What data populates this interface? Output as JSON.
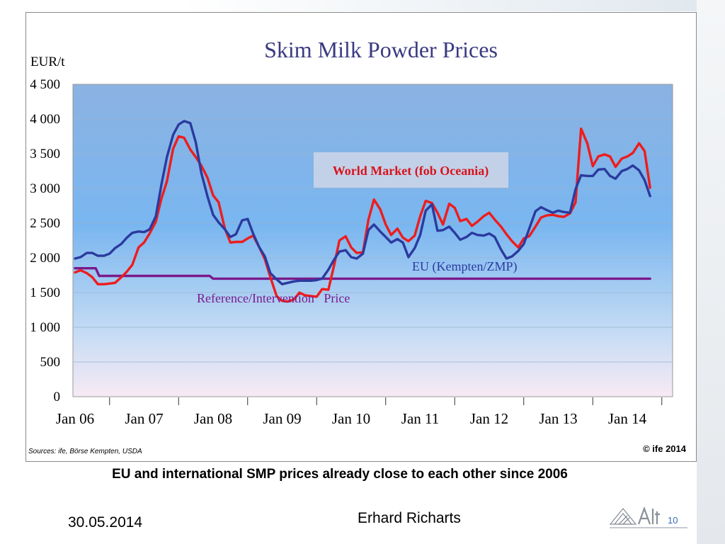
{
  "slide": {
    "caption": "EU and international SMP prices already close to each other since 2006",
    "date": "30.05.2014",
    "author": "Erhard Richarts",
    "page_number": "10"
  },
  "chart_data": {
    "type": "line",
    "title": "Skim Milk Powder Prices",
    "ylabel": "EUR/t",
    "xlabel": "",
    "ylim": [
      0,
      4500
    ],
    "yticks": [
      0,
      500,
      1000,
      1500,
      2000,
      2500,
      3000,
      3500,
      4000,
      4500
    ],
    "ytick_labels": [
      "0",
      "500",
      "1 000",
      "1 500",
      "2 000",
      "2 500",
      "3 000",
      "3 500",
      "4 000",
      "4 500"
    ],
    "xticks": [
      "Jan 06",
      "Jan 07",
      "Jan 08",
      "Jan 09",
      "Jan 10",
      "Jan 11",
      "Jan 12",
      "Jan 13",
      "Jan 14"
    ],
    "grid": true,
    "annotations": {
      "world": "World Market (fob Oceania)",
      "eu": "EU (Kempten/ZMP)",
      "ref": "Reference/Intervention   Price"
    },
    "source": "Sources: ife, Börse Kempten,  USDA",
    "copyright": "© ife 2014",
    "colors": {
      "world": "#ee1c1c",
      "eu": "#2b3a9e",
      "ref": "#7a1a8c"
    },
    "series": [
      {
        "key": "world",
        "color": "#ee1c1c",
        "t": [
          2006.0,
          2006.08,
          2006.17,
          2006.25,
          2006.33,
          2006.42,
          2006.5,
          2006.58,
          2006.67,
          2006.75,
          2006.83,
          2006.92,
          2007.0,
          2007.08,
          2007.17,
          2007.25,
          2007.33,
          2007.42,
          2007.5,
          2007.58,
          2007.67,
          2007.75,
          2007.83,
          2007.92,
          2008.0,
          2008.08,
          2008.17,
          2008.25,
          2008.33,
          2008.42,
          2008.5,
          2008.58,
          2008.67,
          2008.75,
          2008.83,
          2008.92,
          2009.0,
          2009.08,
          2009.17,
          2009.25,
          2009.33,
          2009.42,
          2009.5,
          2009.58,
          2009.67,
          2009.75,
          2009.83,
          2009.92,
          2010.0,
          2010.08,
          2010.17,
          2010.25,
          2010.33,
          2010.42,
          2010.5,
          2010.58,
          2010.67,
          2010.75,
          2010.83,
          2010.92,
          2011.0,
          2011.08,
          2011.17,
          2011.25,
          2011.33,
          2011.42,
          2011.5,
          2011.58,
          2011.67,
          2011.75,
          2011.83,
          2011.92,
          2012.0,
          2012.08,
          2012.17,
          2012.25,
          2012.33,
          2012.42,
          2012.5,
          2012.58,
          2012.67,
          2012.75,
          2012.83,
          2012.92,
          2013.0,
          2013.08,
          2013.17,
          2013.25,
          2013.33,
          2013.42,
          2013.5,
          2013.58,
          2013.67,
          2013.75,
          2013.83,
          2013.92,
          2014.0,
          2014.08,
          2014.17,
          2014.25,
          2014.33
        ],
        "values": [
          1790,
          1820,
          1780,
          1720,
          1620,
          1620,
          1630,
          1640,
          1720,
          1800,
          1900,
          2150,
          2220,
          2350,
          2520,
          2850,
          3100,
          3570,
          3750,
          3730,
          3560,
          3450,
          3330,
          3150,
          2900,
          2800,
          2420,
          2220,
          2230,
          2230,
          2280,
          2320,
          2150,
          1980,
          1720,
          1450,
          1380,
          1370,
          1400,
          1500,
          1460,
          1450,
          1440,
          1550,
          1540,
          1880,
          2250,
          2310,
          2150,
          2070,
          2080,
          2550,
          2840,
          2700,
          2480,
          2330,
          2420,
          2290,
          2240,
          2320,
          2600,
          2820,
          2790,
          2650,
          2480,
          2780,
          2720,
          2530,
          2560,
          2460,
          2520,
          2600,
          2650,
          2550,
          2450,
          2340,
          2240,
          2150,
          2280,
          2310,
          2450,
          2580,
          2610,
          2620,
          2600,
          2590,
          2640,
          2800,
          3860,
          3650,
          3320,
          3460,
          3490,
          3460,
          3310,
          3430,
          3460,
          3510,
          3650,
          3540,
          3010
        ]
      },
      {
        "key": "eu",
        "color": "#2b3a9e",
        "t": [
          2006.0,
          2006.08,
          2006.17,
          2006.25,
          2006.33,
          2006.42,
          2006.5,
          2006.58,
          2006.67,
          2006.75,
          2006.83,
          2006.92,
          2007.0,
          2007.08,
          2007.17,
          2007.25,
          2007.33,
          2007.42,
          2007.5,
          2007.58,
          2007.67,
          2007.75,
          2007.83,
          2007.92,
          2008.0,
          2008.08,
          2008.17,
          2008.25,
          2008.33,
          2008.42,
          2008.5,
          2008.58,
          2008.67,
          2008.75,
          2008.83,
          2008.92,
          2009.0,
          2009.08,
          2009.17,
          2009.25,
          2009.33,
          2009.42,
          2009.5,
          2009.58,
          2009.67,
          2009.75,
          2009.83,
          2009.92,
          2010.0,
          2010.08,
          2010.17,
          2010.25,
          2010.33,
          2010.42,
          2010.5,
          2010.58,
          2010.67,
          2010.75,
          2010.83,
          2010.92,
          2011.0,
          2011.08,
          2011.17,
          2011.25,
          2011.33,
          2011.42,
          2011.5,
          2011.58,
          2011.67,
          2011.75,
          2011.83,
          2011.92,
          2012.0,
          2012.08,
          2012.17,
          2012.25,
          2012.33,
          2012.42,
          2012.5,
          2012.58,
          2012.67,
          2012.75,
          2012.83,
          2012.92,
          2013.0,
          2013.08,
          2013.17,
          2013.25,
          2013.33,
          2013.42,
          2013.5,
          2013.58,
          2013.67,
          2013.75,
          2013.83,
          2013.92,
          2014.0,
          2014.08,
          2014.17,
          2014.25,
          2014.33
        ],
        "values": [
          1990,
          2010,
          2070,
          2070,
          2030,
          2030,
          2060,
          2140,
          2200,
          2290,
          2360,
          2380,
          2370,
          2410,
          2600,
          3050,
          3450,
          3770,
          3920,
          3970,
          3940,
          3660,
          3220,
          2880,
          2620,
          2510,
          2410,
          2300,
          2340,
          2540,
          2560,
          2350,
          2150,
          2020,
          1780,
          1690,
          1620,
          1640,
          1660,
          1670,
          1670,
          1670,
          1680,
          1700,
          1830,
          1970,
          2090,
          2110,
          2010,
          1990,
          2060,
          2400,
          2480,
          2380,
          2300,
          2220,
          2270,
          2220,
          2010,
          2140,
          2330,
          2680,
          2770,
          2390,
          2400,
          2450,
          2360,
          2260,
          2300,
          2360,
          2330,
          2320,
          2350,
          2300,
          2120,
          1990,
          2020,
          2100,
          2200,
          2420,
          2670,
          2730,
          2690,
          2650,
          2680,
          2660,
          2650,
          2990,
          3190,
          3180,
          3180,
          3270,
          3280,
          3180,
          3140,
          3250,
          3280,
          3330,
          3260,
          3120,
          2890
        ]
      },
      {
        "key": "ref",
        "color": "#7a1a8c",
        "t": [
          2006.0,
          2006.3,
          2006.35,
          2007.95,
          2008.0,
          2014.33
        ],
        "values": [
          1850,
          1850,
          1740,
          1740,
          1700,
          1700
        ]
      }
    ]
  }
}
